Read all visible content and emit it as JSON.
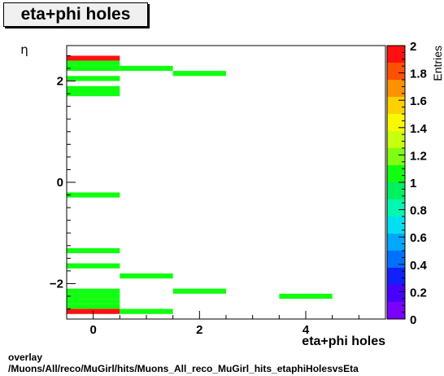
{
  "title": "eta+phi holes",
  "footer": {
    "line1": "overlay",
    "line2": "/Muons/All/reco/MuGirl/hits/Muons_All_reco_MuGirl_hits_etaphiHolesvsEta"
  },
  "chart_data": {
    "type": "heatmap",
    "title": "eta+phi holes",
    "xlabel": "eta+phi holes",
    "ylabel": "η",
    "zlabel": "Entries",
    "xlim": [
      -0.5,
      5.5
    ],
    "ylim": [
      -2.7,
      2.7
    ],
    "zlim": [
      0,
      2
    ],
    "x_ticks": [
      0,
      2,
      4
    ],
    "y_ticks": [
      -2,
      0,
      2
    ],
    "z_ticks": [
      "0",
      "0.2",
      "0.4",
      "0.6",
      "0.8",
      "1",
      "1.2",
      "1.4",
      "1.6",
      "1.8",
      "2"
    ],
    "bin_height": 0.1,
    "bins": [
      {
        "x": 0,
        "y": 2.4,
        "value": 2
      },
      {
        "x": 0,
        "y": 2.3,
        "value": 1
      },
      {
        "x": 0,
        "y": 2.2,
        "value": 1
      },
      {
        "x": 1,
        "y": 2.2,
        "value": 1
      },
      {
        "x": 2,
        "y": 2.1,
        "value": 1
      },
      {
        "x": 0,
        "y": 2.0,
        "value": 1
      },
      {
        "x": 0,
        "y": 1.8,
        "value": 1
      },
      {
        "x": 0,
        "y": 1.7,
        "value": 1
      },
      {
        "x": 0,
        "y": -0.3,
        "value": 1
      },
      {
        "x": 0,
        "y": -1.4,
        "value": 1
      },
      {
        "x": 0,
        "y": -1.7,
        "value": 1
      },
      {
        "x": 1,
        "y": -1.9,
        "value": 1
      },
      {
        "x": 0,
        "y": -2.2,
        "value": 1
      },
      {
        "x": 2,
        "y": -2.2,
        "value": 1
      },
      {
        "x": 0,
        "y": -2.3,
        "value": 1
      },
      {
        "x": 4,
        "y": -2.3,
        "value": 1
      },
      {
        "x": 0,
        "y": -2.4,
        "value": 1
      },
      {
        "x": 0,
        "y": -2.5,
        "value": 1
      },
      {
        "x": 0,
        "y": -2.6,
        "value": 2
      },
      {
        "x": 1,
        "y": -2.6,
        "value": 1
      }
    ]
  }
}
